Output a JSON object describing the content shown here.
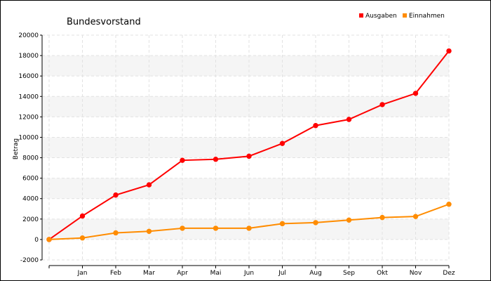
{
  "chart_data": {
    "type": "line",
    "title": "Bundesvorstand",
    "xlabel": "",
    "ylabel": "Betrag",
    "categories": [
      "",
      "Jan",
      "Feb",
      "Mar",
      "Apr",
      "Mai",
      "Jun",
      "Jul",
      "Aug",
      "Sep",
      "Okt",
      "Nov",
      "Dez"
    ],
    "series": [
      {
        "name": "Ausgaben",
        "color": "#ff0000",
        "values": [
          0,
          2300,
          4350,
          5350,
          7750,
          7850,
          8150,
          9400,
          11150,
          11750,
          13200,
          14300,
          18450
        ]
      },
      {
        "name": "Einnahmen",
        "color": "#ff8c00",
        "values": [
          0,
          150,
          650,
          800,
          1100,
          1100,
          1100,
          1550,
          1650,
          1900,
          2150,
          2250,
          3450
        ]
      }
    ],
    "ylim": [
      -2000,
      20000
    ],
    "yticks": [
      -2000,
      0,
      2000,
      4000,
      6000,
      8000,
      10000,
      12000,
      14000,
      16000,
      18000,
      20000
    ],
    "grid": true,
    "legend": "top-right"
  }
}
